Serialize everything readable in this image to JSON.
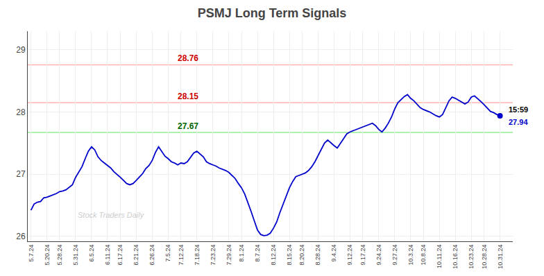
{
  "chart_data": {
    "type": "line",
    "title": "PSMJ Long Term Signals",
    "categories": [
      "5.7.24",
      null,
      null,
      null,
      null,
      "5.20.24",
      null,
      null,
      null,
      "5.28.24",
      null,
      null,
      null,
      null,
      "5.31.24",
      null,
      null,
      null,
      null,
      "6.5.24",
      null,
      null,
      null,
      null,
      "6.11.24",
      null,
      null,
      null,
      "6.17.24",
      null,
      null,
      null,
      null,
      "6.21.24",
      null,
      null,
      null,
      null,
      "6.26.24",
      null,
      null,
      null,
      null,
      "7.5.24",
      null,
      null,
      null,
      "7.12.24",
      null,
      null,
      null,
      null,
      "7.18.24",
      null,
      null,
      null,
      null,
      "7.23.24",
      null,
      null,
      null,
      null,
      "7.29.24",
      null,
      null,
      null,
      "8.1.24",
      null,
      null,
      null,
      null,
      "8.7.24",
      null,
      null,
      null,
      null,
      "8.12.24",
      null,
      null,
      null,
      null,
      "8.15.24",
      null,
      null,
      null,
      "8.20.24",
      null,
      null,
      null,
      null,
      "8.28.24",
      null,
      null,
      null,
      null,
      "9.4.24",
      null,
      null,
      null,
      null,
      "9.12.24",
      null,
      null,
      null,
      "9.17.24",
      null,
      null,
      null,
      null,
      "9.24.24",
      null,
      null,
      null,
      null,
      "9.27.24",
      null,
      null,
      null,
      null,
      "10.3.24",
      null,
      null,
      null,
      "10.8.24",
      null,
      null,
      null,
      null,
      "10.11.24",
      null,
      null,
      null,
      null,
      "10.16.24",
      null,
      null,
      null,
      null,
      "10.23.24",
      null,
      null,
      null,
      "10.28.24",
      null,
      null,
      null,
      null,
      "10.31.24"
    ],
    "values": [
      26.42,
      26.52,
      26.55,
      26.56,
      26.62,
      26.63,
      26.65,
      26.67,
      26.69,
      26.72,
      26.73,
      26.75,
      26.79,
      26.83,
      26.95,
      27.03,
      27.12,
      27.25,
      27.37,
      27.44,
      27.39,
      27.28,
      27.22,
      27.18,
      27.14,
      27.1,
      27.04,
      27.0,
      26.95,
      26.9,
      26.85,
      26.83,
      26.85,
      26.9,
      26.95,
      27.01,
      27.09,
      27.14,
      27.22,
      27.35,
      27.44,
      27.37,
      27.29,
      27.25,
      27.2,
      27.18,
      27.15,
      27.18,
      27.17,
      27.2,
      27.27,
      27.34,
      27.37,
      27.33,
      27.28,
      27.2,
      27.17,
      27.15,
      27.13,
      27.1,
      27.08,
      27.06,
      27.03,
      26.98,
      26.93,
      26.85,
      26.78,
      26.68,
      26.55,
      26.4,
      26.25,
      26.1,
      26.03,
      26.01,
      26.02,
      26.05,
      26.13,
      26.23,
      26.38,
      26.52,
      26.65,
      26.78,
      26.88,
      26.96,
      26.98,
      27.0,
      27.02,
      27.06,
      27.12,
      27.2,
      27.3,
      27.4,
      27.5,
      27.55,
      27.5,
      27.46,
      27.42,
      27.5,
      27.58,
      27.65,
      27.68,
      27.7,
      27.72,
      27.74,
      27.76,
      27.78,
      27.8,
      27.82,
      27.78,
      27.72,
      27.68,
      27.74,
      27.82,
      27.92,
      28.05,
      28.15,
      28.2,
      28.25,
      28.28,
      28.22,
      28.18,
      28.12,
      28.07,
      28.04,
      28.02,
      28.0,
      27.97,
      27.94,
      27.92,
      27.96,
      28.07,
      28.18,
      28.24,
      28.22,
      28.19,
      28.16,
      28.13,
      28.16,
      28.24,
      28.26,
      28.22,
      28.17,
      28.12,
      28.07,
      28.01,
      27.99,
      27.96,
      27.94
    ],
    "color": "#0000cc",
    "ylim": [
      25.92,
      29.3
    ],
    "yticks": [
      26,
      27,
      28,
      29
    ],
    "grid": true,
    "hlines": [
      {
        "value": 28.76,
        "label": "28.76",
        "color": "#ffb3b3",
        "label_color": "#cc0000"
      },
      {
        "value": 28.15,
        "label": "28.15",
        "color": "#ffb3b3",
        "label_color": "#cc0000"
      },
      {
        "value": 27.67,
        "label": "27.67",
        "color": "#90ee90",
        "label_color": "#006600"
      }
    ],
    "end_marker": {
      "marker": "circle",
      "color": "#0000cc"
    },
    "end_labels": [
      {
        "text": "15:59",
        "color": "#000000"
      },
      {
        "text": "27.94",
        "color": "#0000cc"
      }
    ],
    "watermark": "Stock Traders Daily"
  }
}
